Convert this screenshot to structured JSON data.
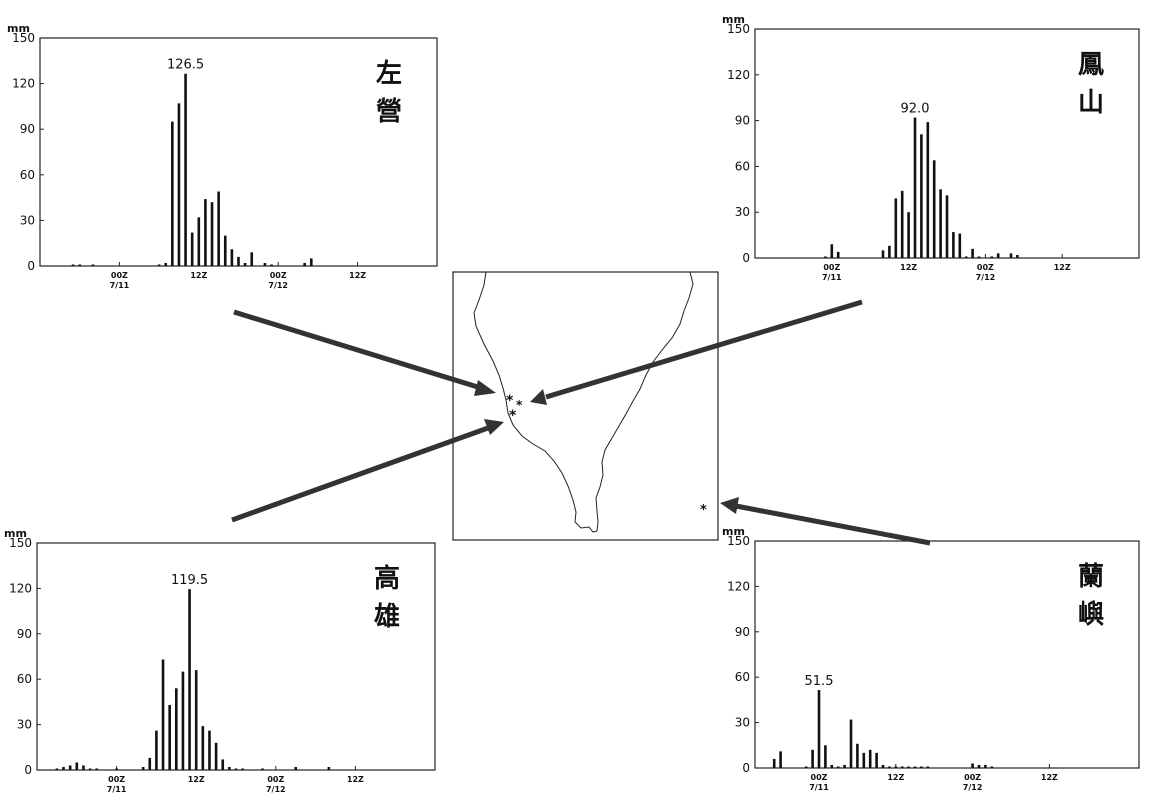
{
  "figure": {
    "map": {
      "markers": [
        "*",
        "*",
        "*",
        "*"
      ]
    }
  },
  "chart_data": [
    {
      "type": "bar",
      "station": [
        "左",
        "營"
      ],
      "ylabel": "mm",
      "ylim": [
        0,
        150
      ],
      "yticks": [
        "150",
        "120",
        "90",
        "60",
        "30",
        "0"
      ],
      "xticks": [
        {
          "pos": 12,
          "line1": "00Z",
          "line2": "7/11"
        },
        {
          "pos": 24,
          "line1": "12Z",
          "line2": ""
        },
        {
          "pos": 36,
          "line1": "00Z",
          "line2": "7/12"
        },
        {
          "pos": 48,
          "line1": "12Z",
          "line2": ""
        }
      ],
      "peak_label": "126.5",
      "x": [
        5,
        6,
        8,
        18,
        19,
        20,
        21,
        22,
        23,
        24,
        25,
        26,
        27,
        28,
        29,
        30,
        31,
        32,
        34,
        35,
        40,
        41
      ],
      "values": [
        1,
        1,
        1,
        1,
        2,
        95,
        107,
        126.5,
        22,
        32,
        44,
        42,
        49,
        20,
        11,
        6,
        2,
        9,
        2,
        1,
        2,
        5
      ]
    },
    {
      "type": "bar",
      "station": [
        "鳳",
        "山"
      ],
      "ylabel": "mm",
      "ylim": [
        0,
        150
      ],
      "yticks": [
        "150",
        "120",
        "90",
        "60",
        "30",
        "0"
      ],
      "xticks": [
        {
          "pos": 12,
          "line1": "00Z",
          "line2": "7/11"
        },
        {
          "pos": 24,
          "line1": "12Z",
          "line2": ""
        },
        {
          "pos": 36,
          "line1": "00Z",
          "line2": "7/12"
        },
        {
          "pos": 48,
          "line1": "12Z",
          "line2": ""
        }
      ],
      "peak_label": "92.0",
      "x": [
        11,
        12,
        13,
        20,
        21,
        22,
        23,
        24,
        25,
        26,
        27,
        28,
        29,
        30,
        31,
        32,
        33,
        34,
        35,
        37,
        38,
        40,
        41
      ],
      "values": [
        1,
        9,
        4,
        5,
        8,
        39,
        44,
        30,
        92,
        81,
        89,
        64,
        45,
        41,
        17,
        16,
        1,
        6,
        1,
        1,
        3,
        3,
        2
      ]
    },
    {
      "type": "bar",
      "station": [
        "高",
        "雄"
      ],
      "ylabel": "mm",
      "ylim": [
        0,
        150
      ],
      "yticks": [
        "150",
        "120",
        "90",
        "60",
        "30",
        "0"
      ],
      "xticks": [
        {
          "pos": 12,
          "line1": "00Z",
          "line2": "7/11"
        },
        {
          "pos": 24,
          "line1": "12Z",
          "line2": ""
        },
        {
          "pos": 36,
          "line1": "00Z",
          "line2": "7/12"
        },
        {
          "pos": 48,
          "line1": "12Z",
          "line2": ""
        }
      ],
      "peak_label": "119.5",
      "x": [
        3,
        4,
        5,
        6,
        7,
        8,
        9,
        12,
        16,
        17,
        18,
        19,
        20,
        21,
        22,
        23,
        24,
        25,
        26,
        27,
        28,
        29,
        30,
        31,
        34,
        39,
        44
      ],
      "values": [
        1,
        2,
        3,
        5,
        3,
        1,
        1,
        1,
        2,
        8,
        26,
        73,
        43,
        54,
        65,
        119.5,
        66,
        29,
        26,
        18,
        7,
        2,
        1,
        1,
        1,
        2,
        2
      ]
    },
    {
      "type": "bar",
      "station": [
        "蘭",
        "嶼"
      ],
      "ylabel": "mm",
      "ylim": [
        0,
        150
      ],
      "yticks": [
        "150",
        "120",
        "90",
        "60",
        "30",
        "0"
      ],
      "xticks": [
        {
          "pos": 10,
          "line1": "00Z",
          "line2": "7/11"
        },
        {
          "pos": 22,
          "line1": "12Z",
          "line2": ""
        },
        {
          "pos": 34,
          "line1": "00Z",
          "line2": "7/12"
        },
        {
          "pos": 46,
          "line1": "12Z",
          "line2": ""
        }
      ],
      "peak_label": "51.5",
      "x": [
        3,
        4,
        8,
        9,
        10,
        11,
        12,
        13,
        14,
        15,
        16,
        17,
        18,
        19,
        20,
        21,
        22,
        23,
        24,
        25,
        26,
        27,
        34,
        35,
        36,
        37
      ],
      "values": [
        6,
        11,
        1,
        12,
        51.5,
        15,
        2,
        1,
        2,
        32,
        16,
        10,
        12,
        10,
        2,
        1,
        1,
        1,
        1,
        1,
        1,
        1,
        3,
        2,
        2,
        1
      ]
    }
  ]
}
